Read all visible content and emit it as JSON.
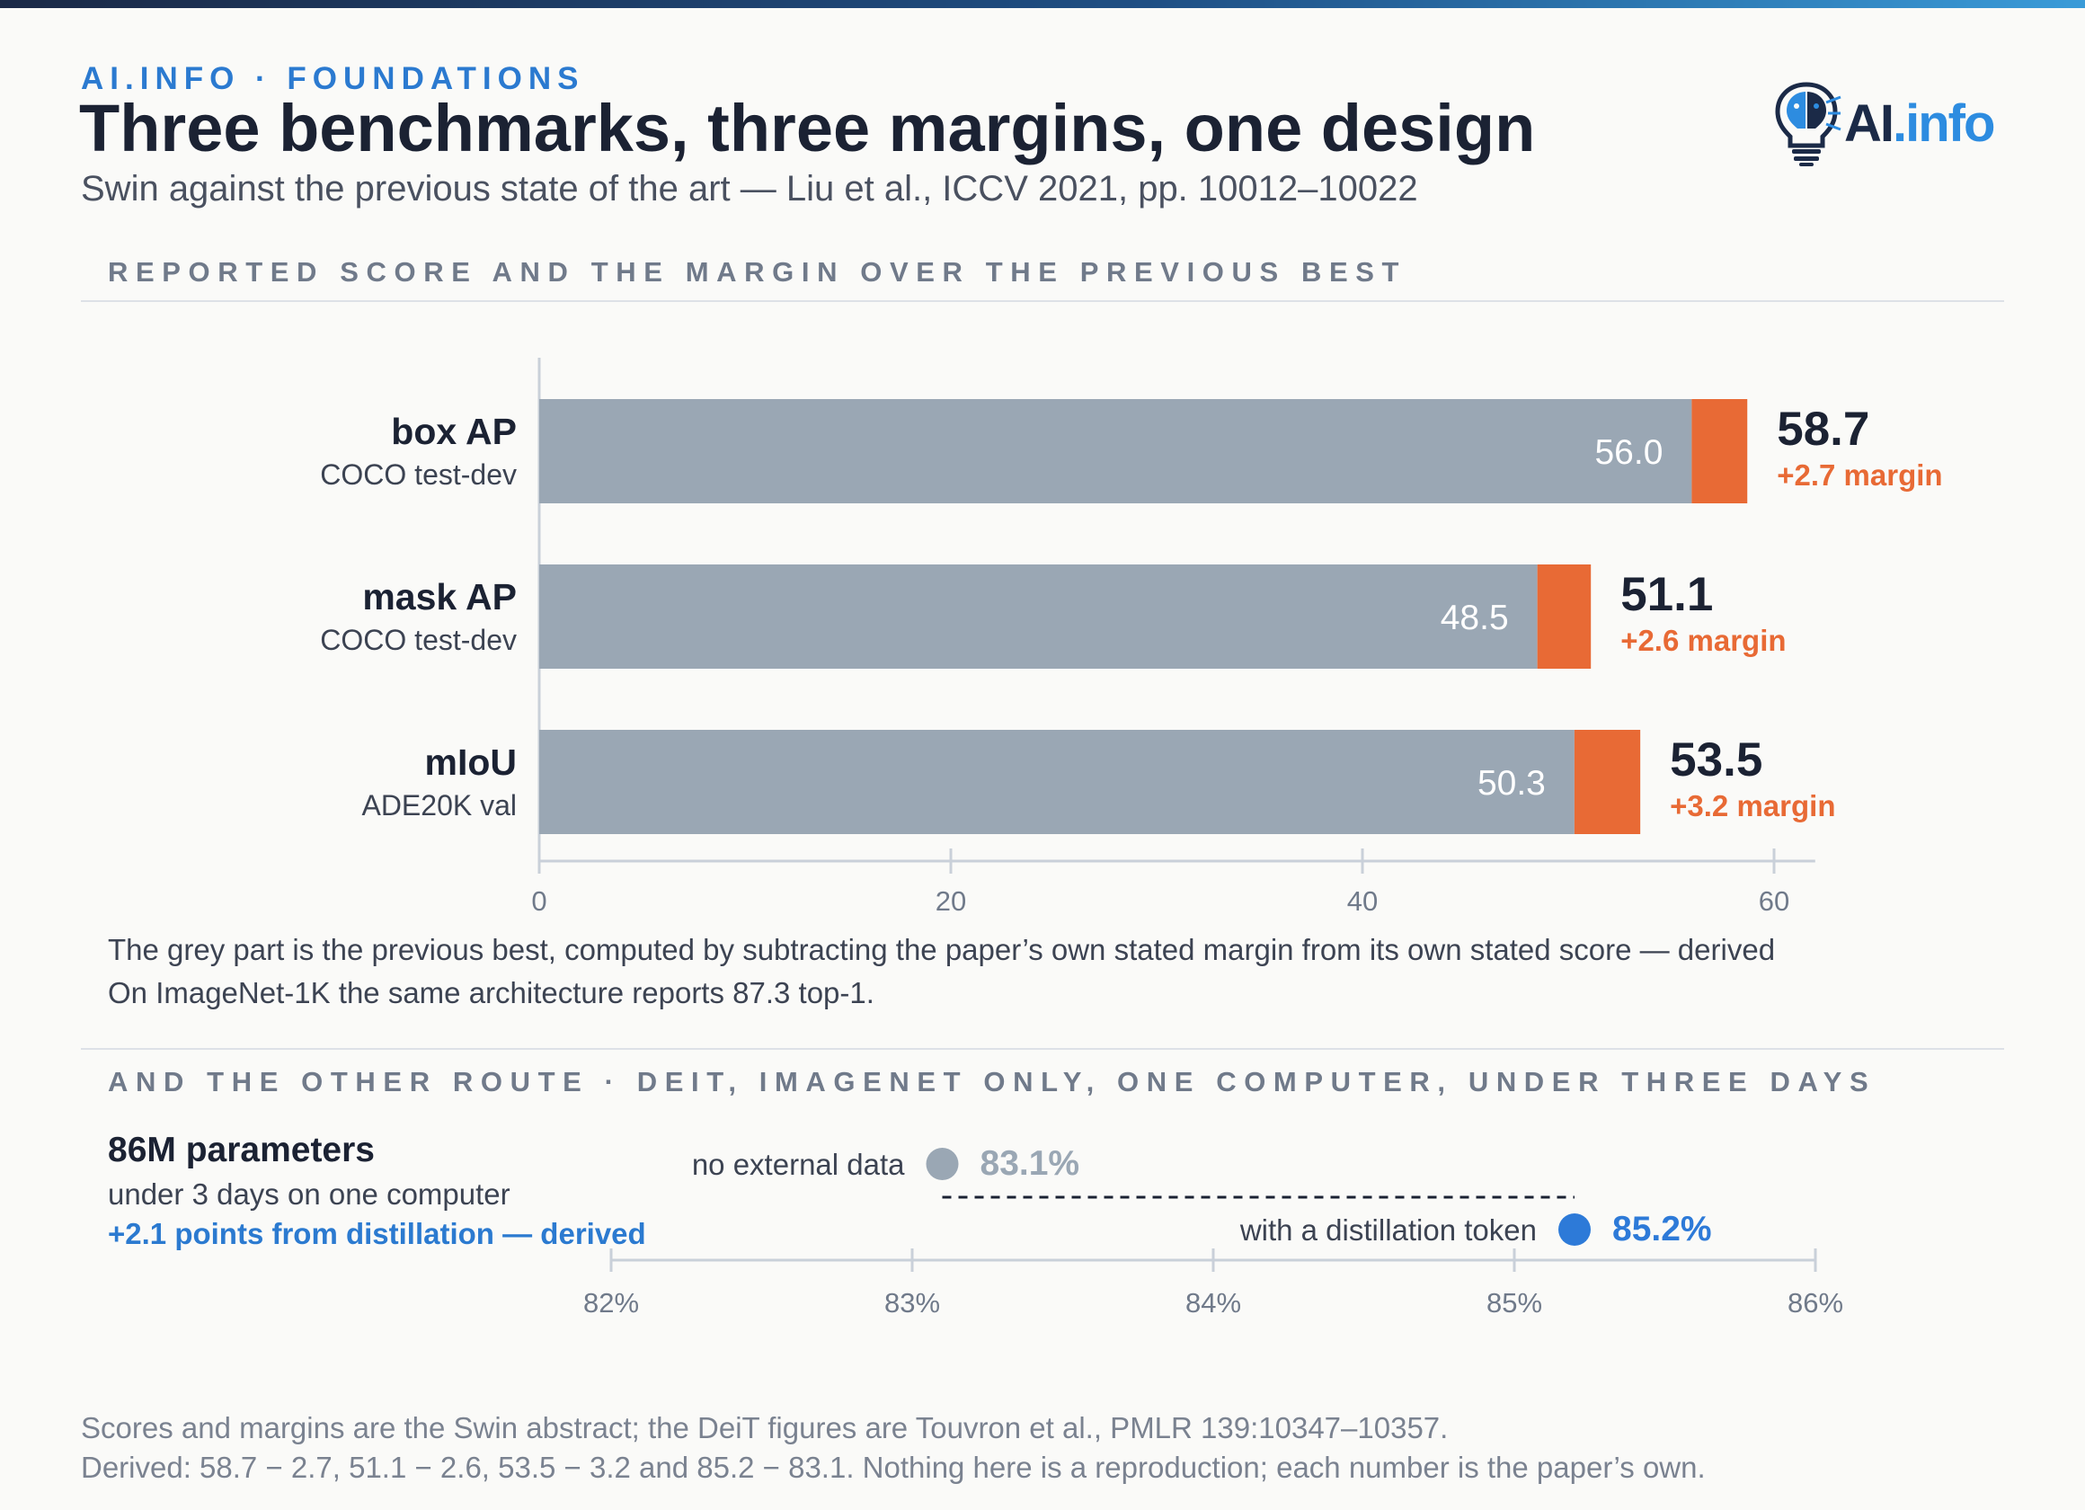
{
  "header": {
    "kicker": "AI.INFO · FOUNDATIONS",
    "title": "Three benchmarks, three margins, one design",
    "subtitle": "Swin against the previous state of the art — Liu et al., ICCV 2021, pp. 10012–10022",
    "logo_text_ai": "AI",
    "logo_text_info": ".info"
  },
  "section1": {
    "heading": "REPORTED SCORE AND THE MARGIN OVER THE PREVIOUS BEST",
    "note_line1": "The grey part is the previous best, computed by subtracting the paper’s own stated margin from its own stated score — derived",
    "note_line2": "On ImageNet-1K the same architecture reports 87.3 top-1."
  },
  "section2": {
    "heading": "AND THE OTHER ROUTE · DEIT, IMAGENET ONLY, ONE COMPUTER, UNDER THREE DAYS",
    "params_label": "86M parameters",
    "time_label": "under 3 days on one computer",
    "gain_label": "+2.1 points from distillation — derived"
  },
  "footer": {
    "line1": "Scores and margins are the Swin abstract; the DeiT figures are Touvron et al., PMLR 139:10347–10357.",
    "line2": "Derived: 58.7 − 2.7, 51.1 − 2.6, 53.5 − 3.2 and 85.2 − 83.1. Nothing here is a reproduction; each number is the paper’s own."
  },
  "colors": {
    "previous_best": "#9aa7b4",
    "margin": "#e86a35",
    "accent": "#2b7ad0",
    "dot_plain": "#9aa7b4",
    "dot_distill": "#2d7ad8"
  },
  "chart_data": [
    {
      "type": "bar",
      "stacked": true,
      "orientation": "horizontal",
      "categories": [
        {
          "name": "box AP",
          "sub": "COCO test-dev"
        },
        {
          "name": "mask AP",
          "sub": "COCO test-dev"
        },
        {
          "name": "mIoU",
          "sub": "ADE20K val"
        }
      ],
      "series": [
        {
          "values": [
            56.0,
            48.5,
            50.3
          ]
        },
        {
          "values": [
            2.7,
            2.6,
            3.2
          ]
        }
      ],
      "totals": [
        58.7,
        51.1,
        53.5
      ],
      "margin_labels": [
        "+2.7 margin",
        "+2.6 margin",
        "+3.2 margin"
      ],
      "xlim": [
        0,
        62
      ],
      "xticks": [
        0,
        20,
        40,
        60
      ],
      "grid": false
    },
    {
      "type": "scatter",
      "points": [
        {
          "label": "no external data",
          "value": 83.1,
          "value_label": "83.1%"
        },
        {
          "label": "with a distillation token",
          "value": 85.2,
          "value_label": "85.2%"
        }
      ],
      "xlim": [
        82,
        86
      ],
      "xticks": [
        82,
        83,
        84,
        85,
        86
      ],
      "xtick_labels": [
        "82%",
        "83%",
        "84%",
        "85%",
        "86%"
      ],
      "grid": false
    }
  ]
}
